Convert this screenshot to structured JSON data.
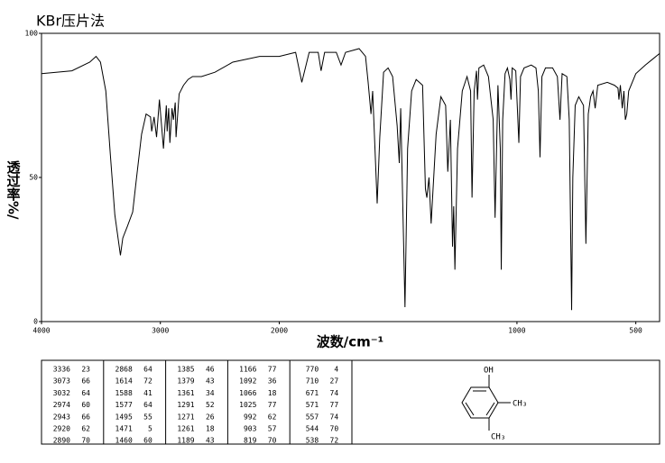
{
  "chart_data": {
    "type": "line",
    "title": "KBr压片法",
    "y_label": "透过率%/",
    "x_label": "波数/cm⁻¹",
    "xlim": [
      4000,
      400
    ],
    "xscale_break": 2000,
    "xticks": [
      4000,
      3000,
      2000,
      1000,
      500
    ],
    "ylim": [
      0,
      100
    ],
    "yticks": [
      0,
      50,
      100
    ],
    "color": "#000000",
    "x": [
      4000,
      3744,
      3594,
      3541,
      3504,
      3459,
      3421,
      3383,
      3336,
      3316,
      3278,
      3233,
      3203,
      3158,
      3120,
      3083,
      3073,
      3053,
      3032,
      3008,
      2974,
      2950,
      2943,
      2930,
      2920,
      2902,
      2890,
      2875,
      2868,
      2842,
      2805,
      2767,
      2729,
      2654,
      2541,
      2391,
      2165,
      2000,
      1931,
      1905,
      1874,
      1836,
      1824,
      1809,
      1760,
      1740,
      1721,
      1664,
      1637,
      1626,
      1614,
      1607,
      1588,
      1577,
      1561,
      1542,
      1523,
      1504,
      1495,
      1489,
      1471,
      1460,
      1443,
      1424,
      1397,
      1385,
      1379,
      1370,
      1361,
      1340,
      1320,
      1300,
      1291,
      1280,
      1271,
      1266,
      1261,
      1250,
      1230,
      1210,
      1195,
      1189,
      1180,
      1170,
      1166,
      1160,
      1140,
      1120,
      1100,
      1092,
      1080,
      1070,
      1066,
      1060,
      1050,
      1040,
      1030,
      1025,
      1020,
      1005,
      992,
      985,
      970,
      940,
      920,
      910,
      903,
      895,
      880,
      850,
      830,
      819,
      810,
      790,
      780,
      770,
      765,
      755,
      740,
      720,
      710,
      700,
      690,
      680,
      671,
      660,
      620,
      590,
      575,
      571,
      565,
      557,
      550,
      544,
      538,
      530,
      500,
      460,
      430,
      400
    ],
    "values": [
      86,
      87,
      90,
      92,
      90,
      80,
      58,
      37,
      23,
      29,
      33,
      38,
      49,
      65,
      72,
      71,
      66,
      71,
      64,
      77,
      60,
      75,
      66,
      74,
      62,
      74,
      70,
      76,
      64,
      79,
      82,
      84,
      85,
      85,
      86.5,
      90,
      92,
      92,
      93.4,
      83,
      93.4,
      93.4,
      87,
      93.4,
      93.4,
      89,
      93.4,
      94.7,
      92,
      83,
      72,
      80,
      41,
      64,
      86.5,
      88,
      85,
      68,
      55,
      74,
      5,
      60,
      80,
      84,
      82,
      46,
      43,
      50,
      34,
      65,
      78,
      75,
      52,
      70,
      26,
      40,
      18,
      60,
      80,
      85,
      80,
      43,
      80,
      87,
      77,
      88,
      89,
      85,
      70,
      36,
      82,
      60,
      18,
      70,
      86,
      88,
      84,
      77,
      88,
      87,
      62,
      85,
      88,
      89,
      88,
      80,
      57,
      85,
      88,
      88,
      85,
      70,
      86,
      85,
      70,
      4,
      50,
      75,
      78,
      75,
      27,
      72,
      78,
      80,
      74,
      82,
      83,
      82,
      81,
      77,
      82,
      74,
      80,
      70,
      72,
      80,
      86,
      89,
      91,
      93
    ]
  },
  "peak_table": {
    "rows": [
      [
        3336,
        23
      ],
      [
        3073,
        66
      ],
      [
        3032,
        64
      ],
      [
        2974,
        60
      ],
      [
        2943,
        66
      ],
      [
        2920,
        62
      ],
      [
        2890,
        70
      ],
      [
        2868,
        64
      ],
      [
        1614,
        72
      ],
      [
        1588,
        41
      ],
      [
        1577,
        64
      ],
      [
        1495,
        55
      ],
      [
        1471,
        5
      ],
      [
        1460,
        60
      ],
      [
        1385,
        46
      ],
      [
        1379,
        43
      ],
      [
        1361,
        34
      ],
      [
        1291,
        52
      ],
      [
        1271,
        26
      ],
      [
        1261,
        18
      ],
      [
        1189,
        43
      ],
      [
        1166,
        77
      ],
      [
        1092,
        36
      ],
      [
        1066,
        18
      ],
      [
        1025,
        77
      ],
      [
        992,
        62
      ],
      [
        903,
        57
      ],
      [
        819,
        70
      ],
      [
        770,
        4
      ],
      [
        710,
        27
      ],
      [
        671,
        74
      ],
      [
        571,
        77
      ],
      [
        557,
        74
      ],
      [
        544,
        70
      ],
      [
        538,
        72
      ]
    ]
  },
  "structure": {
    "labels": [
      "OH",
      "CH₃",
      "CH₃"
    ]
  }
}
